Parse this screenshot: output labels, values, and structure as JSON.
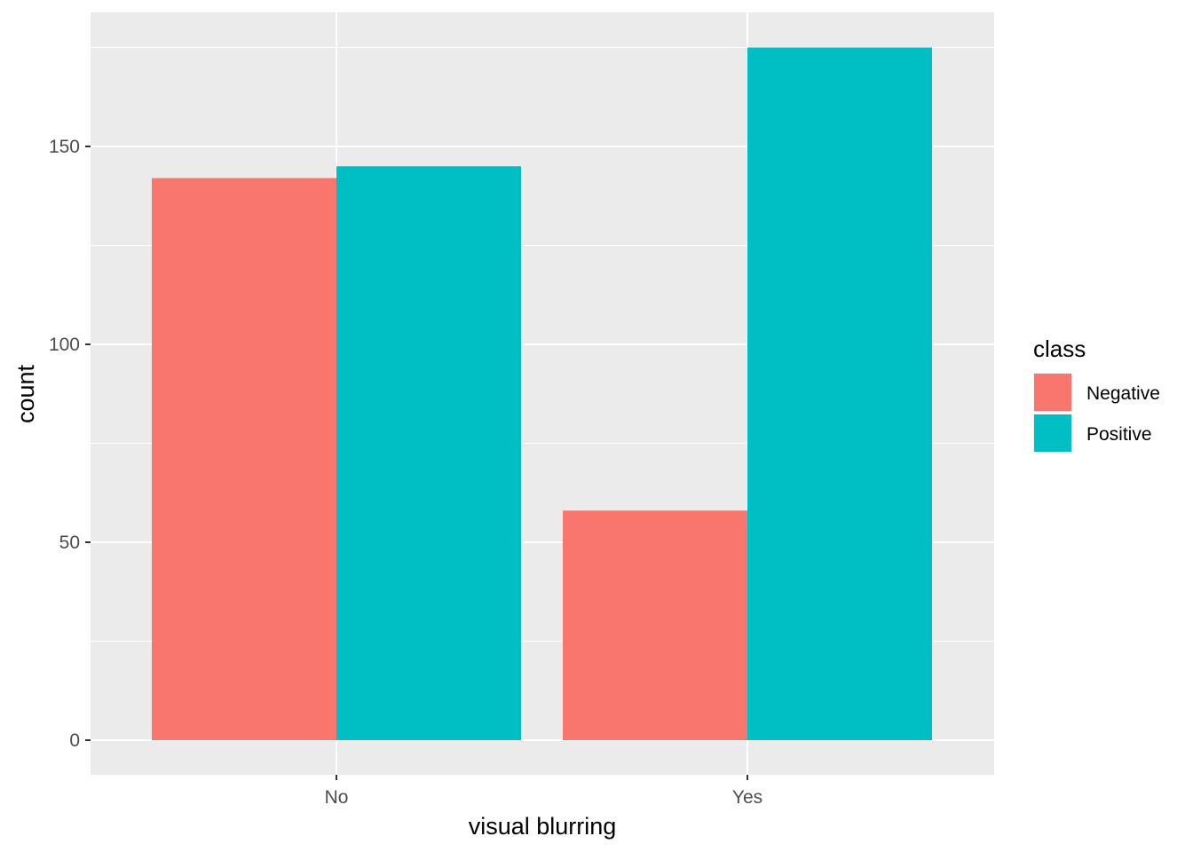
{
  "chart_data": {
    "type": "bar",
    "title": "",
    "xlabel": "visual blurring",
    "ylabel": "count",
    "categories": [
      "No",
      "Yes"
    ],
    "series": [
      {
        "name": "Negative",
        "values": [
          142,
          58
        ],
        "color": "#F8766D"
      },
      {
        "name": "Positive",
        "values": [
          145,
          175
        ],
        "color": "#00BFC4"
      }
    ],
    "ylim": [
      0,
      183.75
    ],
    "y_ticks": [
      0,
      50,
      100,
      150
    ],
    "y_tick_labels": [
      "0",
      "50",
      "100",
      "150"
    ],
    "grid": true,
    "panel_background": "#EBEBEB",
    "grid_color": "#FFFFFF",
    "legend": {
      "title": "class",
      "position": "right",
      "items": [
        "Negative",
        "Positive"
      ]
    }
  }
}
